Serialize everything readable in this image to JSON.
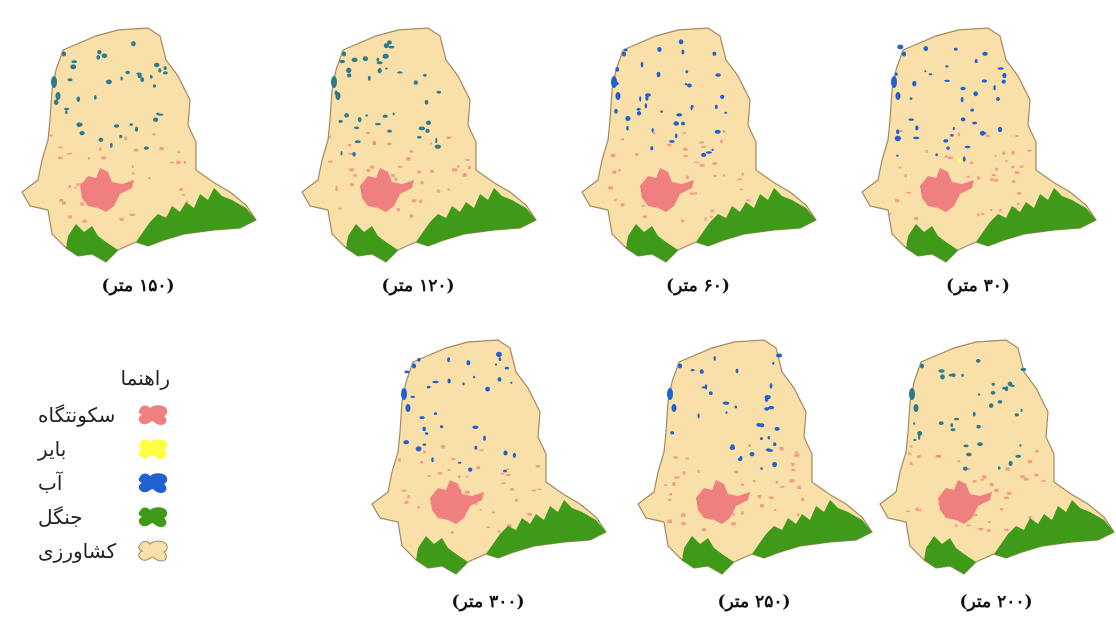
{
  "colors": {
    "agriculture": "#F9DFA8",
    "settlement": "#F08080",
    "bare": "#FFFF44",
    "water": "#2060D0",
    "water_alt": "#2A7A90",
    "forest": "#3E9A18",
    "outline": "#A08A60"
  },
  "panels": [
    {
      "caption": "(۳۰ متر)",
      "scale_m": 30,
      "water_color": "water",
      "bare_present": true
    },
    {
      "caption": "(۶۰ متر)",
      "scale_m": 60,
      "water_color": "water",
      "bare_present": false
    },
    {
      "caption": "(۱۲۰ متر)",
      "scale_m": 120,
      "water_color": "water_alt",
      "bare_present": false
    },
    {
      "caption": "(۱۵۰ متر)",
      "scale_m": 150,
      "water_color": "water_alt",
      "bare_present": false
    },
    {
      "caption": "(۲۰۰ متر)",
      "scale_m": 200,
      "water_color": "water_alt",
      "bare_present": false
    },
    {
      "caption": "(۲۵۰ متر)",
      "scale_m": 250,
      "water_color": "water",
      "bare_present": false
    },
    {
      "caption": "(۳۰۰ متر)",
      "scale_m": 300,
      "water_color": "water",
      "bare_present": false
    }
  ],
  "legend": {
    "title": "راهنما",
    "items": [
      {
        "label": "سکونتگاه",
        "color_key": "settlement"
      },
      {
        "label": "بایر",
        "color_key": "bare"
      },
      {
        "label": "آب",
        "color_key": "water"
      },
      {
        "label": "جنگل",
        "color_key": "forest"
      },
      {
        "label": "کشاورزی",
        "color_key": "agriculture"
      }
    ]
  }
}
